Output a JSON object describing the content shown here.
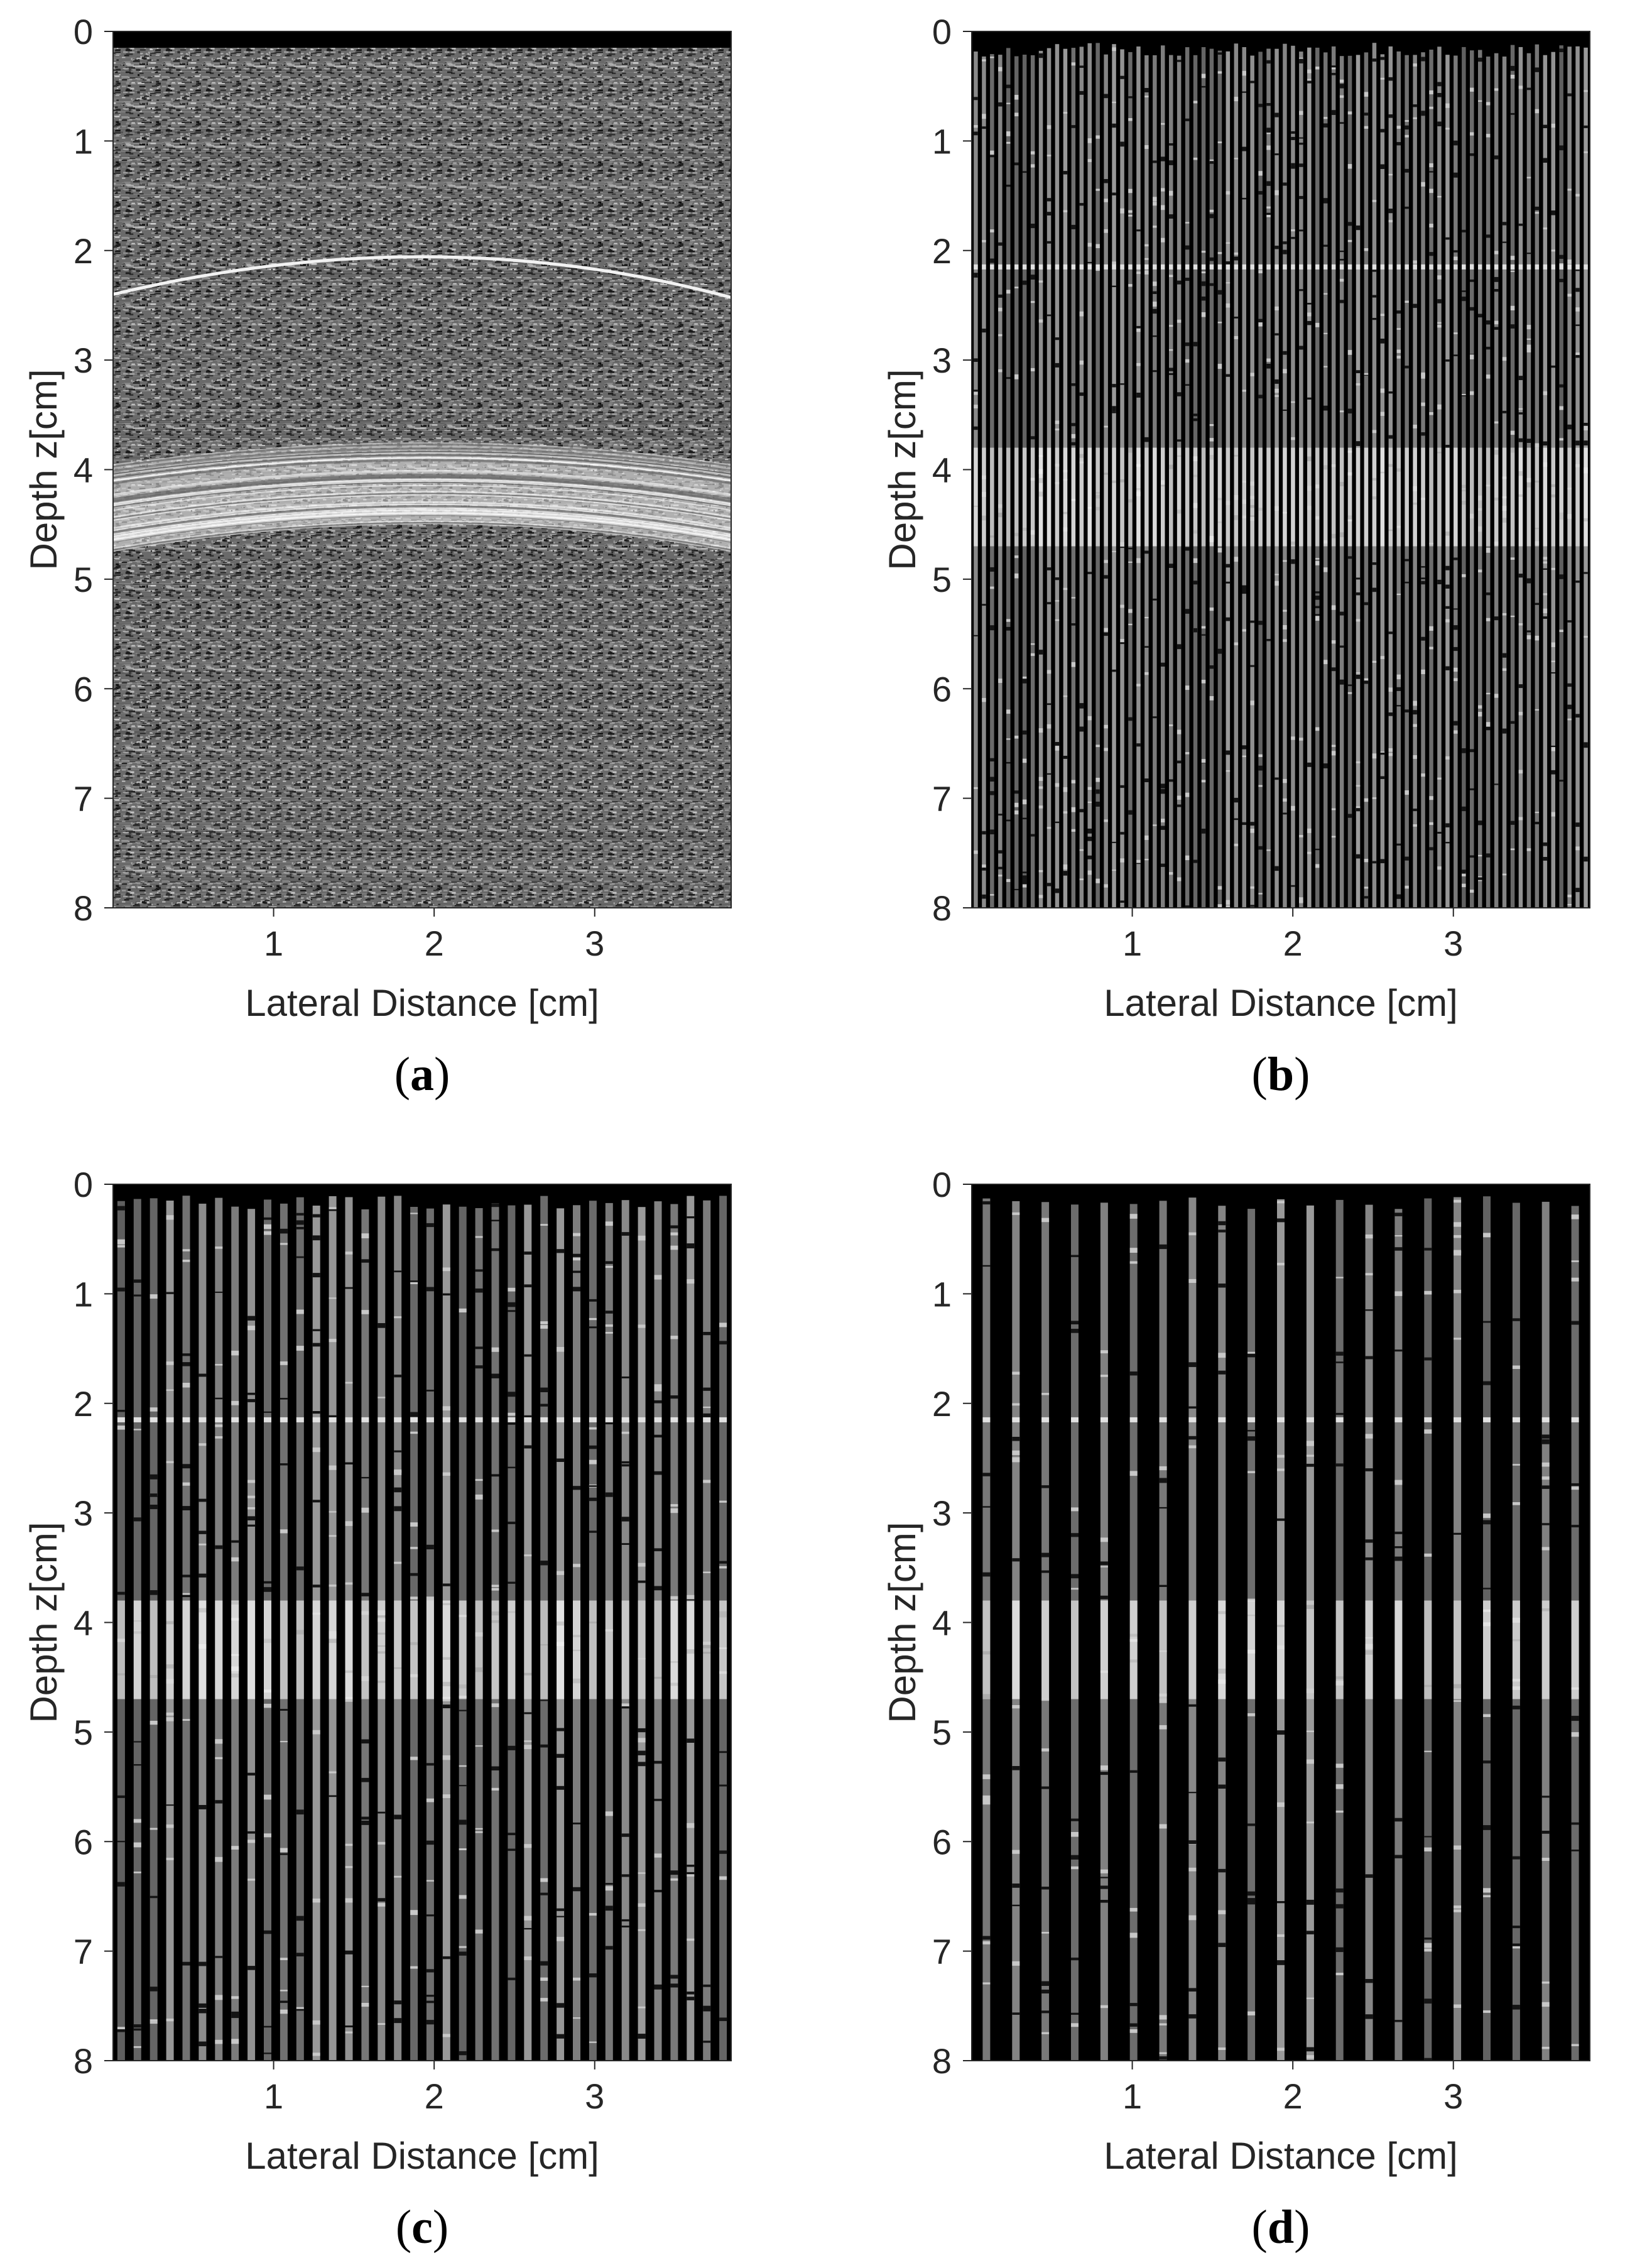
{
  "colors": {
    "background": "#ffffff",
    "text": "#262626",
    "caption": "#000000",
    "image_black": "#000000",
    "speckle_mid": "#6a6a6a",
    "echo_bright": "#e8e8e8"
  },
  "chart_data": [
    {
      "type": "heatmap",
      "caption_letter": "a",
      "image_kind": "full_bmode",
      "line_count": 0,
      "xlabel": "Lateral Distance [cm]",
      "ylabel": "Depth z[cm]",
      "xlim": [
        0,
        3.85
      ],
      "ylim": [
        0,
        8
      ],
      "y_reversed": true,
      "xticks": [
        "1",
        "2",
        "3"
      ],
      "xtick_values": [
        1,
        2,
        3
      ],
      "yticks": [
        "0",
        "1",
        "2",
        "3",
        "4",
        "5",
        "6",
        "7",
        "8"
      ],
      "ytick_values": [
        0,
        1,
        2,
        3,
        4,
        5,
        6,
        7,
        8
      ],
      "colormap": "gray",
      "grid": false,
      "features": {
        "thin_reflector": {
          "depth_at_edges_cm": 2.4,
          "depth_at_apex_cm": 2.05,
          "apex_x_cm": 2.0
        },
        "bright_band": {
          "top_at_edges_cm": 3.95,
          "top_at_apex_cm": 3.75,
          "bottom_at_edges_cm": 4.75,
          "bottom_at_apex_cm": 4.5,
          "apex_x_cm": 2.0
        },
        "dark_surface_cm": 0.15
      }
    },
    {
      "type": "heatmap",
      "caption_letter": "b",
      "image_kind": "sparse_lines",
      "line_count": 76,
      "xlabel": "Lateral Distance [cm]",
      "ylabel": "Depth z[cm]",
      "xlim": [
        0,
        3.85
      ],
      "ylim": [
        0,
        8
      ],
      "y_reversed": true,
      "xticks": [
        "1",
        "2",
        "3"
      ],
      "xtick_values": [
        1,
        2,
        3
      ],
      "yticks": [
        "0",
        "1",
        "2",
        "3",
        "4",
        "5",
        "6",
        "7",
        "8"
      ],
      "ytick_values": [
        0,
        1,
        2,
        3,
        4,
        5,
        6,
        7,
        8
      ],
      "colormap": "gray",
      "grid": false
    },
    {
      "type": "heatmap",
      "caption_letter": "c",
      "image_kind": "sparse_lines",
      "line_count": 38,
      "xlabel": "Lateral Distance [cm]",
      "ylabel": "Depth z[cm]",
      "xlim": [
        0,
        3.85
      ],
      "ylim": [
        0,
        8
      ],
      "y_reversed": true,
      "xticks": [
        "1",
        "2",
        "3"
      ],
      "xtick_values": [
        1,
        2,
        3
      ],
      "yticks": [
        "0",
        "1",
        "2",
        "3",
        "4",
        "5",
        "6",
        "7",
        "8"
      ],
      "ytick_values": [
        0,
        1,
        2,
        3,
        4,
        5,
        6,
        7,
        8
      ],
      "colormap": "gray",
      "grid": false
    },
    {
      "type": "heatmap",
      "caption_letter": "d",
      "image_kind": "sparse_lines",
      "line_count": 21,
      "xlabel": "Lateral Distance [cm]",
      "ylabel": "Depth z[cm]",
      "xlim": [
        0,
        3.85
      ],
      "ylim": [
        0,
        8
      ],
      "y_reversed": true,
      "xticks": [
        "1",
        "2",
        "3"
      ],
      "xtick_values": [
        1,
        2,
        3
      ],
      "yticks": [
        "0",
        "1",
        "2",
        "3",
        "4",
        "5",
        "6",
        "7",
        "8"
      ],
      "ytick_values": [
        0,
        1,
        2,
        3,
        4,
        5,
        6,
        7,
        8
      ],
      "colormap": "gray",
      "grid": false
    }
  ]
}
